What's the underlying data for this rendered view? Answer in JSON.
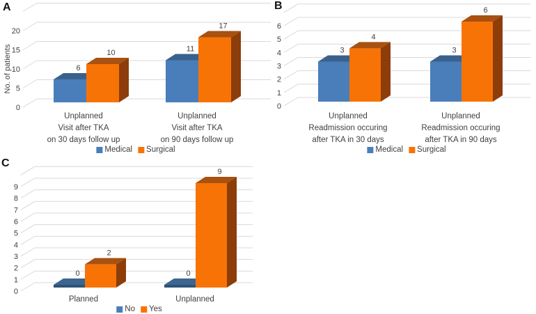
{
  "figure": {
    "background": "#ffffff",
    "text_color": "#404040",
    "gridline_color": "#d9d9d9"
  },
  "palette": {
    "blue": {
      "front": "#4A7EBB",
      "top": "#3A618C",
      "side": "#2E5070",
      "zero_front": "#2E5377",
      "zero_top": "#3D6590"
    },
    "orange": {
      "front": "#F87306",
      "top": "#A85110",
      "side": "#8C3D09",
      "zero_front": "#8C3D09",
      "zero_top": "#A85110"
    }
  },
  "chart_data": [
    {
      "panel_label": "A",
      "type": "bar",
      "style": "3d-clustered-column",
      "title": "",
      "xlabel": "",
      "ylabel": "No. of patients",
      "yticks": [
        0,
        5,
        10,
        15,
        20
      ],
      "ylim": [
        0,
        25
      ],
      "grid_extra": 25,
      "grid": true,
      "legend_position": "bottom-center",
      "categories": [
        [
          "Unplanned",
          "Visit after TKA",
          "on 30 days follow up"
        ],
        [
          "Unplanned",
          "Visit after TKA",
          "on 90 days follow up"
        ]
      ],
      "series": [
        {
          "name": "Medical",
          "color": "blue",
          "values": [
            6,
            11
          ]
        },
        {
          "name": "Surgical",
          "color": "orange",
          "values": [
            10,
            17
          ]
        }
      ]
    },
    {
      "panel_label": "B",
      "type": "bar",
      "style": "3d-clustered-column",
      "title": "",
      "xlabel": "",
      "ylabel": "",
      "yticks": [
        0,
        1,
        2,
        3,
        4,
        5,
        6
      ],
      "ylim": [
        0,
        7
      ],
      "grid_extra": 7,
      "grid": true,
      "legend_position": "bottom-center",
      "categories": [
        [
          "Unplanned",
          "Readmission occuring",
          "after TKA in 30 days"
        ],
        [
          "Unplanned",
          "Readmission occuring",
          "after TKA in 90 days"
        ]
      ],
      "series": [
        {
          "name": "Medical",
          "color": "blue",
          "values": [
            3,
            3
          ]
        },
        {
          "name": "Surgical",
          "color": "orange",
          "values": [
            4,
            6
          ]
        }
      ]
    },
    {
      "panel_label": "C",
      "type": "bar",
      "style": "3d-clustered-column",
      "title": "",
      "xlabel": "",
      "ylabel": "",
      "yticks": [
        0,
        1,
        2,
        3,
        4,
        5,
        6,
        7,
        8,
        9
      ],
      "ylim": [
        0,
        10
      ],
      "grid_extra": 10,
      "grid": true,
      "legend_position": "bottom-center",
      "categories": [
        [
          "Planned"
        ],
        [
          "Unplanned"
        ]
      ],
      "series": [
        {
          "name": "No",
          "color": "blue",
          "values": [
            0,
            0
          ]
        },
        {
          "name": "Yes",
          "color": "orange",
          "values": [
            2,
            9
          ]
        }
      ]
    }
  ]
}
